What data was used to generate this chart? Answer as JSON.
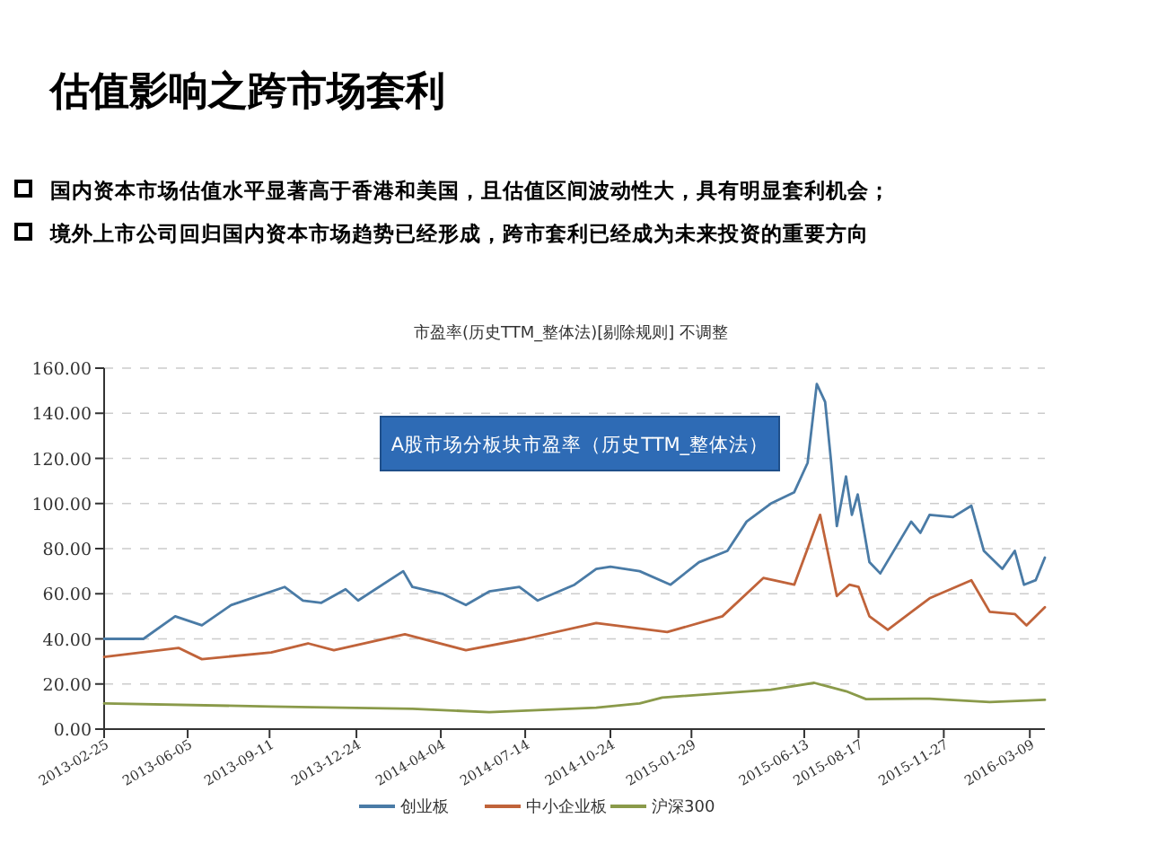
{
  "chart_data": {
    "type": "line",
    "title": "估值影响之跨市场套利",
    "subtitle": "市盈率(历史TTM_整体法)[剔除规则] 不调整",
    "annotations": [
      "国内资本市场估值水平显著高于香港和美国，且估值区间波动性大，具有明显套利机会；",
      "境外上市公司回归国内资本市场趋势已经形成，跨市套利已经成为未来投资的重要方向",
      "A股市场分板块市盈率（历史TTM_整体法）"
    ],
    "xlim": [
      "2013-02-25",
      "2016-03-27"
    ],
    "xticks": [
      "2013-02-25",
      "2013-06-05",
      "2013-09-11",
      "2013-12-24",
      "2014-04-04",
      "2014-07-14",
      "2014-10-24",
      "2015-01-29",
      "2015-06-13",
      "2015-08-17",
      "2015-11-27",
      "2016-03-09"
    ],
    "ylim": [
      0,
      160
    ],
    "yticks": [
      {
        "value": 0,
        "label": "0.00"
      },
      {
        "value": 20,
        "label": "20.00"
      },
      {
        "value": 40,
        "label": "40.00"
      },
      {
        "value": 60,
        "label": "60.00"
      },
      {
        "value": 80,
        "label": "80.00"
      },
      {
        "value": 100,
        "label": "100.00"
      },
      {
        "value": 120,
        "label": "120.00"
      },
      {
        "value": 140,
        "label": "140.00"
      },
      {
        "value": 160,
        "label": "160.00"
      }
    ],
    "grid": "y",
    "legend": "bottom",
    "series": [
      {
        "name": "创业板",
        "color": "#4a7ba6",
        "x": [
          "2013-02-25",
          "2013-04-13",
          "2013-05-21",
          "2013-06-22",
          "2013-07-27",
          "2013-09-29",
          "2013-10-21",
          "2013-11-12",
          "2013-12-11",
          "2013-12-26",
          "2014-02-18",
          "2014-03-01",
          "2014-04-06",
          "2014-05-04",
          "2014-06-01",
          "2014-07-07",
          "2014-07-29",
          "2014-09-11",
          "2014-10-07",
          "2014-10-24",
          "2014-11-28",
          "2015-01-04",
          "2015-02-07",
          "2015-03-13",
          "2015-04-05",
          "2015-05-04",
          "2015-06-01",
          "2015-06-17",
          "2015-06-28",
          "2015-07-08",
          "2015-07-15",
          "2015-07-22",
          "2015-08-02",
          "2015-08-09",
          "2015-08-16",
          "2015-08-30",
          "2015-09-12",
          "2015-10-19",
          "2015-10-30",
          "2015-11-10",
          "2015-12-08",
          "2015-12-30",
          "2016-01-14",
          "2016-02-05",
          "2016-02-20",
          "2016-03-02",
          "2016-03-16",
          "2016-03-27"
        ],
        "values": [
          40,
          40,
          50,
          46,
          55,
          63,
          57,
          56,
          62,
          57,
          70,
          63,
          60,
          55,
          61,
          63,
          57,
          64,
          71,
          72,
          70,
          64,
          74,
          79,
          92,
          100,
          105,
          118,
          153,
          145,
          119,
          90,
          112,
          95,
          104,
          74,
          69,
          92,
          87,
          95,
          94,
          99,
          79,
          71,
          79,
          64,
          66,
          76
        ]
      },
      {
        "name": "中小企业板",
        "color": "#c0633a",
        "x": [
          "2013-02-25",
          "2013-05-25",
          "2013-06-22",
          "2013-09-13",
          "2013-10-27",
          "2013-11-27",
          "2014-02-20",
          "2014-05-04",
          "2014-07-14",
          "2014-10-07",
          "2014-12-31",
          "2015-03-07",
          "2015-04-25",
          "2015-06-01",
          "2015-07-02",
          "2015-07-22",
          "2015-08-06",
          "2015-08-17",
          "2015-08-30",
          "2015-09-21",
          "2015-11-10",
          "2015-12-30",
          "2016-01-21",
          "2016-02-20",
          "2016-03-05",
          "2016-03-27"
        ],
        "values": [
          32,
          36,
          31,
          34,
          38,
          35,
          42,
          35,
          40,
          47,
          43,
          50,
          67,
          64,
          95,
          59,
          64,
          63,
          50,
          44,
          58,
          66,
          52,
          51,
          46,
          54
        ]
      },
      {
        "name": "沪深300",
        "color": "#8a9a4a",
        "x": [
          "2013-02-25",
          "2013-09-13",
          "2014-03-01",
          "2014-06-01",
          "2014-10-07",
          "2014-11-28",
          "2014-12-25",
          "2015-05-04",
          "2015-06-25",
          "2015-08-02",
          "2015-08-26",
          "2015-11-10",
          "2016-01-21",
          "2016-03-27"
        ],
        "values": [
          11.4,
          10,
          9,
          7.5,
          9.5,
          11.4,
          14,
          17.5,
          20.5,
          16.8,
          13.3,
          13.5,
          12,
          13
        ]
      }
    ]
  }
}
